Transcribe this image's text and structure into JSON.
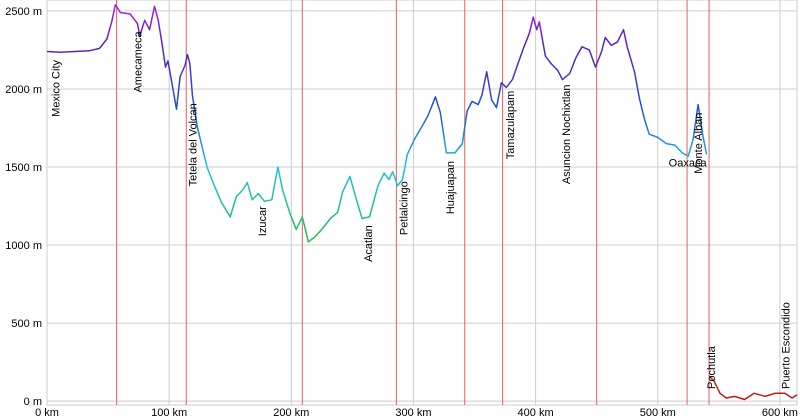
{
  "chart_data": {
    "type": "line",
    "xlim": [
      0,
      614
    ],
    "ylim": [
      -25,
      2570
    ],
    "xticks": [
      {
        "value": 0,
        "label": "0 km"
      },
      {
        "value": 100,
        "label": "100 km"
      },
      {
        "value": 200,
        "label": "200 km"
      },
      {
        "value": 300,
        "label": "300 km"
      },
      {
        "value": 400,
        "label": "400 km"
      },
      {
        "value": 500,
        "label": "500 km"
      },
      {
        "value": 600,
        "label": "600 km"
      }
    ],
    "yticks": [
      {
        "value": 0,
        "label": "0 m"
      },
      {
        "value": 500,
        "label": "500 m"
      },
      {
        "value": 1000,
        "label": "1000 m"
      },
      {
        "value": 1500,
        "label": "1500 m"
      },
      {
        "value": 2000,
        "label": "2000 m"
      },
      {
        "value": 2500,
        "label": "2500 m"
      }
    ],
    "grid": true,
    "color_scale": [
      {
        "value": 0,
        "color": "#d01010"
      },
      {
        "value": 1000,
        "color": "#20c040"
      },
      {
        "value": 1500,
        "color": "#20c0e0"
      },
      {
        "value": 1900,
        "color": "#2050d0"
      },
      {
        "value": 2300,
        "color": "#6020c0"
      },
      {
        "value": 2550,
        "color": "#b020e0"
      }
    ],
    "x": [
      0,
      11,
      35,
      43,
      49,
      53,
      56,
      60,
      68,
      74,
      76,
      80,
      84,
      88,
      91,
      94,
      97,
      99,
      102,
      106,
      109,
      113,
      115,
      117,
      119,
      123,
      127,
      131,
      137,
      143,
      150,
      155,
      160,
      164,
      168,
      173,
      178,
      184,
      189,
      193,
      199,
      204,
      209,
      214,
      219,
      225,
      232,
      238,
      242,
      248,
      253,
      258,
      264,
      271,
      276,
      280,
      283,
      287,
      291,
      295,
      301,
      307,
      312,
      318,
      322,
      327,
      334,
      340,
      344,
      348,
      353,
      356,
      360,
      364,
      368,
      372,
      376,
      381,
      385,
      390,
      395,
      398,
      401,
      403,
      408,
      413,
      418,
      422,
      428,
      433,
      438,
      444,
      449,
      454,
      457,
      462,
      467,
      472,
      475,
      481,
      485,
      489,
      493,
      500,
      507,
      514,
      520,
      525,
      529,
      533,
      537,
      540,
      541,
      542,
      546,
      551,
      556,
      563,
      571,
      579,
      588,
      596,
      604,
      610,
      614
    ],
    "values": [
      2240,
      2235,
      2245,
      2260,
      2320,
      2430,
      2540,
      2490,
      2480,
      2420,
      2340,
      2440,
      2380,
      2530,
      2440,
      2300,
      2140,
      2180,
      2050,
      1870,
      2080,
      2150,
      2220,
      2160,
      1960,
      1760,
      1630,
      1500,
      1380,
      1270,
      1180,
      1310,
      1350,
      1400,
      1290,
      1330,
      1280,
      1290,
      1500,
      1350,
      1200,
      1100,
      1180,
      1020,
      1050,
      1100,
      1170,
      1210,
      1340,
      1440,
      1300,
      1170,
      1180,
      1380,
      1460,
      1420,
      1470,
      1380,
      1420,
      1580,
      1680,
      1760,
      1830,
      1950,
      1850,
      1590,
      1590,
      1650,
      1860,
      1920,
      1900,
      1960,
      2110,
      1930,
      1880,
      2040,
      2010,
      2060,
      2150,
      2260,
      2360,
      2460,
      2380,
      2430,
      2210,
      2160,
      2120,
      2060,
      2100,
      2200,
      2270,
      2250,
      2140,
      2240,
      2330,
      2280,
      2300,
      2380,
      2270,
      2110,
      1940,
      1810,
      1710,
      1690,
      1650,
      1640,
      1590,
      1570,
      1680,
      1900,
      1700,
      1580,
      null,
      160,
      130,
      50,
      20,
      30,
      10,
      50,
      30,
      50,
      50,
      20,
      40
    ],
    "markers": {
      "color": "#e06060",
      "x": [
        57,
        114,
        209,
        286,
        342,
        373,
        450,
        524,
        542
      ]
    },
    "annotations": [
      {
        "text": "Mexico City",
        "x": 7
      },
      {
        "text": "Amecameca",
        "x": 74
      },
      {
        "text": "Tetela del Volcan",
        "x": 119
      },
      {
        "text": "Izucar",
        "x": 176
      },
      {
        "text": "Acatlan",
        "x": 263
      },
      {
        "text": "Petlalcingo",
        "x": 292
      },
      {
        "text": "Huajuapan",
        "x": 330
      },
      {
        "text": "Tamazulapam",
        "x": 379
      },
      {
        "text": "Asuncion Nochixtlan",
        "x": 425
      },
      {
        "text": "Oaxaca",
        "x": 540,
        "orientation": "horizontal"
      },
      {
        "text": "Monte Alban",
        "x": 533
      },
      {
        "text": "Pochutla",
        "x": 547
      },
      {
        "text": "Puerto Escondido",
        "x": 608
      }
    ]
  }
}
